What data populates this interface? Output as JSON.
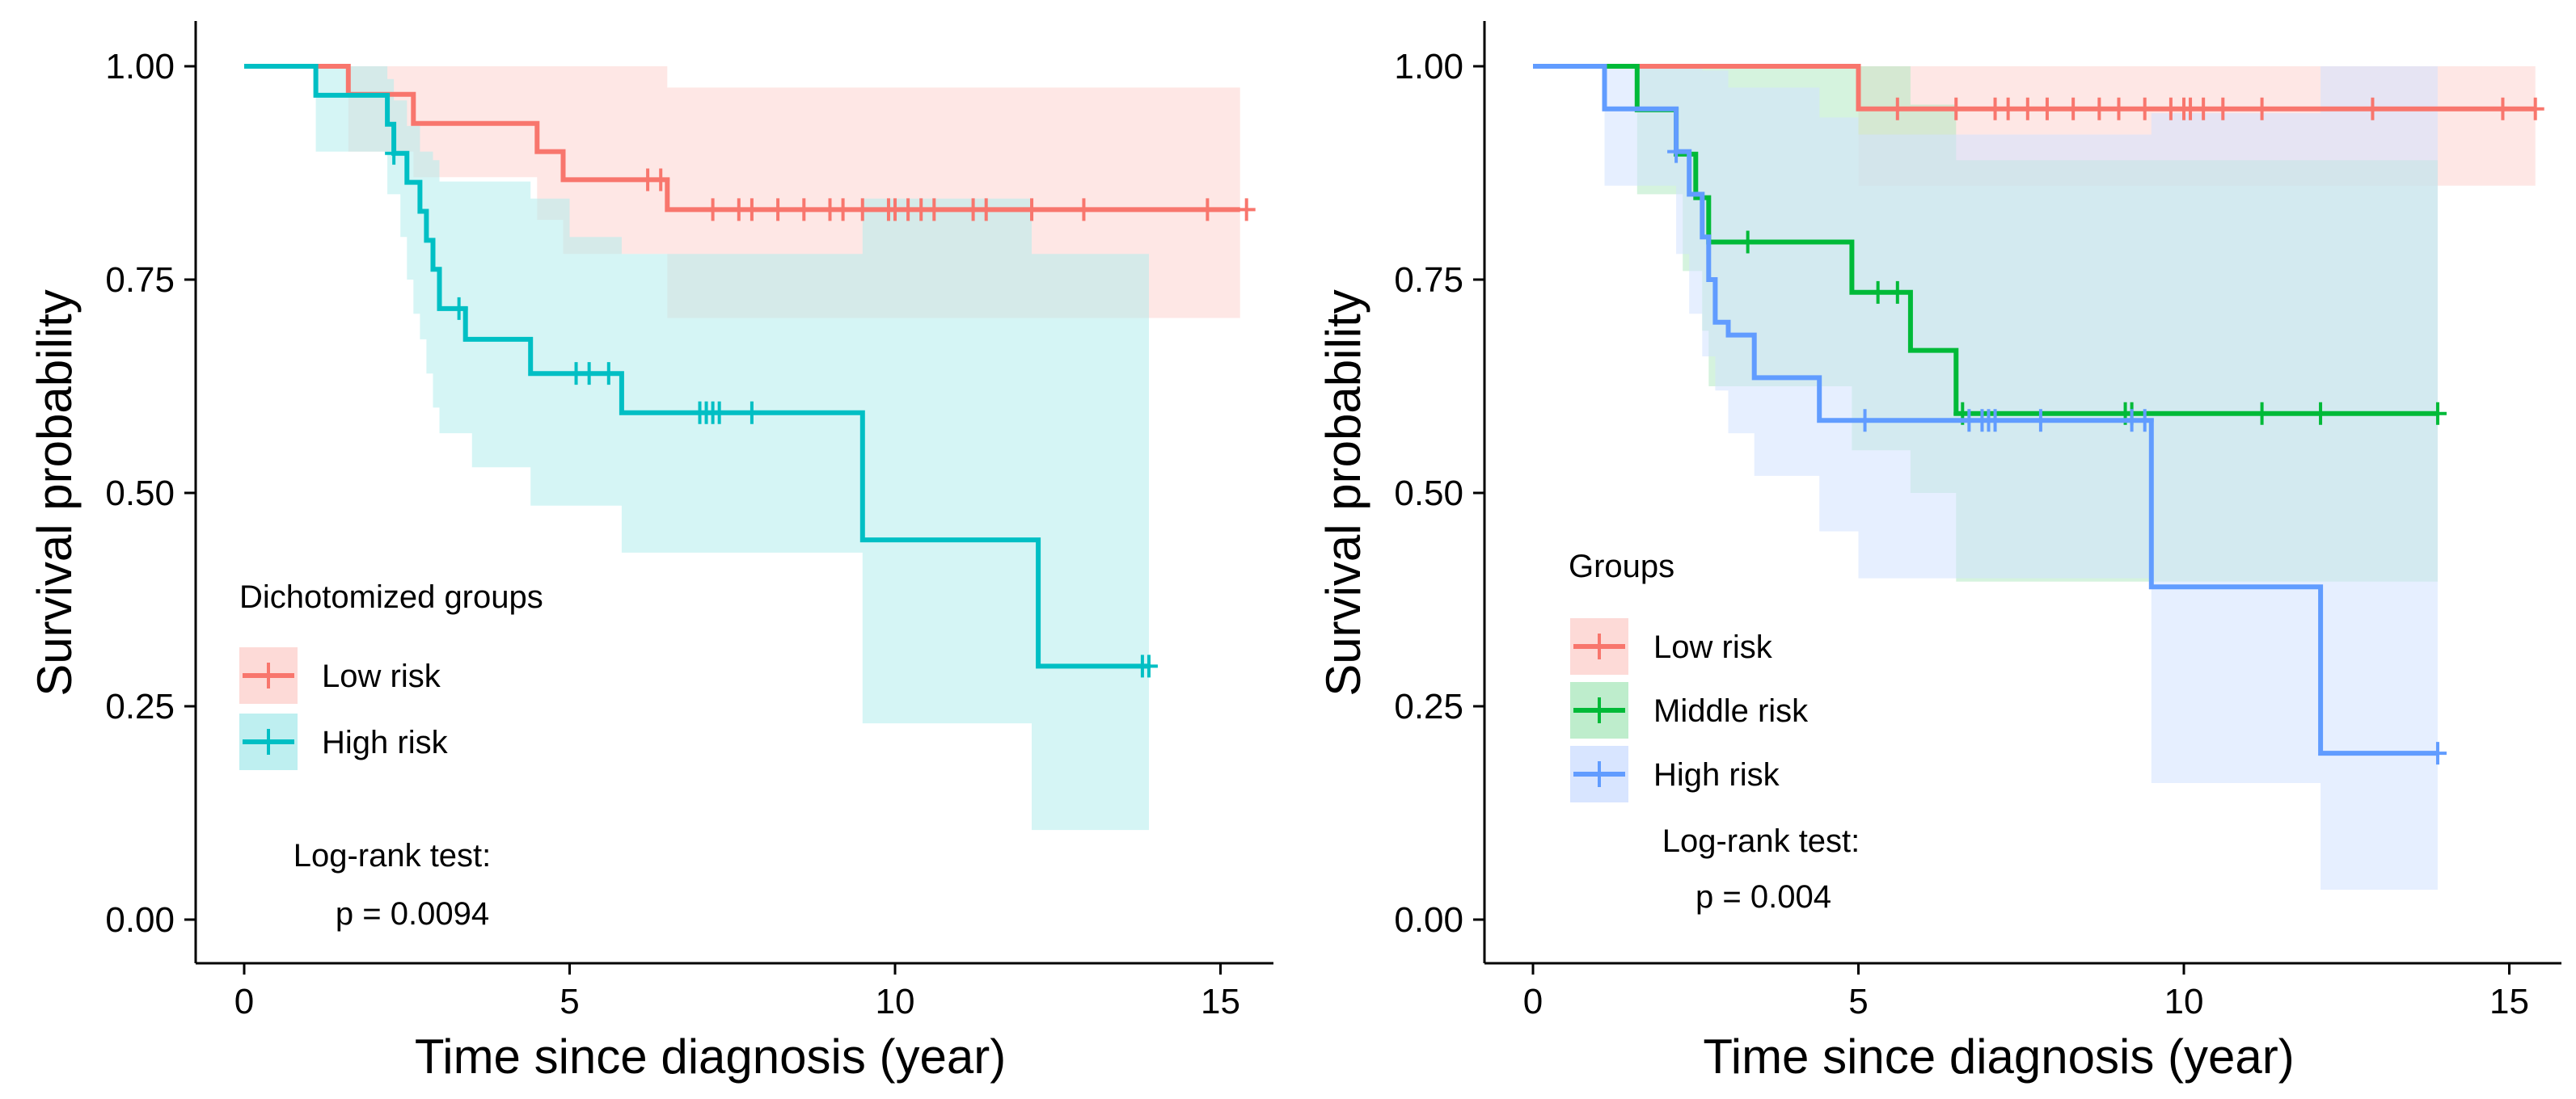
{
  "chart_data": [
    {
      "type": "line",
      "subtype": "kaplan-meier",
      "title": "",
      "xlabel": "Time since diagnosis (year)",
      "ylabel": "Survival probability",
      "xlim": [
        -0.75,
        15.75
      ],
      "ylim": [
        -0.05,
        1.05
      ],
      "xticks": [
        0,
        5,
        10,
        15
      ],
      "yticks": [
        0.0,
        0.25,
        0.5,
        0.75,
        1.0
      ],
      "xtick_labels": [
        "0",
        "5",
        "10",
        "15"
      ],
      "ytick_labels": [
        "0.00",
        "0.25",
        "0.50",
        "0.75",
        "1.00"
      ],
      "grid": false,
      "legend": {
        "title": "Dichotomized groups",
        "position": "left-middle"
      },
      "annotation": {
        "title": "Log-rank test:",
        "value": "p = 0.0094"
      },
      "series": [
        {
          "name": "Low risk",
          "color": "#F8766D",
          "band_color": "#FDD3D0",
          "steps": [
            [
              0,
              1.0
            ],
            [
              1.6,
              0.967
            ],
            [
              2.6,
              0.933
            ],
            [
              4.5,
              0.9
            ],
            [
              4.9,
              0.867
            ],
            [
              6.5,
              0.832
            ],
            [
              15.3,
              0.832
            ]
          ],
          "ci_lower": [
            [
              0,
              1.0
            ],
            [
              1.6,
              0.9
            ],
            [
              2.6,
              0.87
            ],
            [
              4.5,
              0.82
            ],
            [
              4.9,
              0.78
            ],
            [
              6.5,
              0.705
            ],
            [
              15.3,
              0.705
            ]
          ],
          "ci_upper": [
            [
              0,
              1.0
            ],
            [
              1.6,
              1.0
            ],
            [
              2.6,
              1.0
            ],
            [
              4.5,
              1.0
            ],
            [
              4.9,
              1.0
            ],
            [
              6.5,
              0.975
            ],
            [
              15.3,
              0.975
            ]
          ],
          "ci_end": 15.3,
          "censor_times": [
            6.2,
            6.4,
            7.2,
            7.6,
            7.8,
            8.2,
            8.6,
            9.0,
            9.2,
            9.5,
            9.9,
            10.0,
            10.2,
            10.4,
            10.6,
            11.2,
            11.4,
            12.1,
            12.9,
            14.8,
            15.4
          ]
        },
        {
          "name": "High risk",
          "color": "#00BFC4",
          "band_color": "#B3ECED",
          "steps": [
            [
              0,
              1.0
            ],
            [
              1.1,
              0.966
            ],
            [
              2.2,
              0.932
            ],
            [
              2.3,
              0.898
            ],
            [
              2.5,
              0.864
            ],
            [
              2.7,
              0.83
            ],
            [
              2.8,
              0.796
            ],
            [
              2.9,
              0.762
            ],
            [
              3.0,
              0.728
            ],
            [
              3.0,
              0.716
            ],
            [
              3.4,
              0.68
            ],
            [
              4.4,
              0.64
            ],
            [
              5.8,
              0.594
            ],
            [
              9.5,
              0.594
            ],
            [
              9.5,
              0.445
            ],
            [
              12.2,
              0.297
            ],
            [
              13.9,
              0.297
            ]
          ],
          "ci_lower": [
            [
              0,
              1.0
            ],
            [
              1.1,
              0.9
            ],
            [
              2.2,
              0.85
            ],
            [
              2.4,
              0.8
            ],
            [
              2.5,
              0.75
            ],
            [
              2.6,
              0.71
            ],
            [
              2.7,
              0.68
            ],
            [
              2.8,
              0.64
            ],
            [
              2.9,
              0.6
            ],
            [
              3.0,
              0.57
            ],
            [
              3.5,
              0.53
            ],
            [
              4.4,
              0.485
            ],
            [
              5.8,
              0.43
            ],
            [
              9.5,
              0.23
            ],
            [
              12.1,
              0.105
            ],
            [
              13.9,
              0.105
            ]
          ],
          "ci_upper": [
            [
              0,
              1.0
            ],
            [
              1.1,
              1.0
            ],
            [
              2.2,
              0.985
            ],
            [
              2.3,
              0.96
            ],
            [
              2.5,
              0.93
            ],
            [
              2.7,
              0.9
            ],
            [
              2.9,
              0.89
            ],
            [
              3.0,
              0.865
            ],
            [
              4.4,
              0.845
            ],
            [
              5.0,
              0.8
            ],
            [
              5.8,
              0.78
            ],
            [
              9.5,
              0.845
            ],
            [
              12.1,
              0.78
            ],
            [
              13.9,
              0.78
            ]
          ],
          "ci_end": 13.9,
          "censor_times": [
            2.3,
            3.3,
            5.1,
            5.3,
            5.6,
            7.0,
            7.1,
            7.2,
            7.3,
            7.8,
            13.8,
            13.9
          ]
        }
      ]
    },
    {
      "type": "line",
      "subtype": "kaplan-meier",
      "title": "",
      "xlabel": "Time since diagnosis (year)",
      "ylabel": "Survival probability",
      "xlim": [
        -0.75,
        15.75
      ],
      "ylim": [
        -0.05,
        1.05
      ],
      "xticks": [
        0,
        5,
        10,
        15
      ],
      "yticks": [
        0.0,
        0.25,
        0.5,
        0.75,
        1.0
      ],
      "xtick_labels": [
        "0",
        "5",
        "10",
        "15"
      ],
      "ytick_labels": [
        "0.00",
        "0.25",
        "0.50",
        "0.75",
        "1.00"
      ],
      "grid": false,
      "legend": {
        "title": "Groups",
        "position": "left-middle"
      },
      "annotation": {
        "title": "Log-rank test:",
        "value": "p = 0.004"
      },
      "series": [
        {
          "name": "Low risk",
          "color": "#F8766D",
          "band_color": "#FDD3D0",
          "steps": [
            [
              0,
              1.0
            ],
            [
              5.0,
              0.95
            ],
            [
              15.4,
              0.95
            ]
          ],
          "ci_lower": [
            [
              0,
              1.0
            ],
            [
              5.0,
              0.86
            ],
            [
              15.4,
              0.86
            ]
          ],
          "ci_upper": [
            [
              0,
              1.0
            ],
            [
              15.4,
              1.0
            ]
          ],
          "ci_end": 15.4,
          "censor_times": [
            5.6,
            6.5,
            7.1,
            7.3,
            7.6,
            7.9,
            8.3,
            8.7,
            9.0,
            9.4,
            9.8,
            10.0,
            10.1,
            10.3,
            10.6,
            11.2,
            12.9,
            14.9,
            15.4
          ]
        },
        {
          "name": "Middle risk",
          "color": "#00BA38",
          "band_color": "#B3EAC3",
          "steps": [
            [
              0,
              1.0
            ],
            [
              1.6,
              0.949
            ],
            [
              2.2,
              0.897
            ],
            [
              2.5,
              0.846
            ],
            [
              2.7,
              0.794
            ],
            [
              4.9,
              0.735
            ],
            [
              5.8,
              0.667
            ],
            [
              6.5,
              0.593
            ],
            [
              13.9,
              0.593
            ]
          ],
          "ci_lower": [
            [
              0,
              1.0
            ],
            [
              1.6,
              0.85
            ],
            [
              2.3,
              0.76
            ],
            [
              2.6,
              0.69
            ],
            [
              2.7,
              0.625
            ],
            [
              4.9,
              0.55
            ],
            [
              5.8,
              0.5
            ],
            [
              6.5,
              0.396
            ],
            [
              13.9,
              0.396
            ]
          ],
          "ci_upper": [
            [
              0,
              1.0
            ],
            [
              4.9,
              1.0
            ],
            [
              5.8,
              0.955
            ],
            [
              6.5,
              0.89
            ],
            [
              13.9,
              0.89
            ]
          ],
          "ci_end": 13.9,
          "censor_times": [
            3.3,
            5.3,
            5.6,
            6.6,
            9.1,
            9.2,
            11.2,
            12.1,
            13.9
          ]
        },
        {
          "name": "High risk",
          "color": "#619CFF",
          "band_color": "#D1E1FF",
          "steps": [
            [
              0,
              1.0
            ],
            [
              1.1,
              0.95
            ],
            [
              2.2,
              0.9
            ],
            [
              2.4,
              0.85
            ],
            [
              2.6,
              0.8
            ],
            [
              2.7,
              0.75
            ],
            [
              2.8,
              0.7
            ],
            [
              3.0,
              0.685
            ],
            [
              3.4,
              0.635
            ],
            [
              4.4,
              0.585
            ],
            [
              9.5,
              0.585
            ],
            [
              9.5,
              0.39
            ],
            [
              12.1,
              0.195
            ],
            [
              13.9,
              0.195
            ]
          ],
          "ci_lower": [
            [
              0,
              1.0
            ],
            [
              1.1,
              0.86
            ],
            [
              2.2,
              0.78
            ],
            [
              2.4,
              0.71
            ],
            [
              2.6,
              0.66
            ],
            [
              2.8,
              0.62
            ],
            [
              3.0,
              0.57
            ],
            [
              3.4,
              0.52
            ],
            [
              4.4,
              0.455
            ],
            [
              5.0,
              0.4
            ],
            [
              9.5,
              0.16
            ],
            [
              12.1,
              0.035
            ],
            [
              13.9,
              0.035
            ]
          ],
          "ci_upper": [
            [
              0,
              1.0
            ],
            [
              2.2,
              1.0
            ],
            [
              2.6,
              0.995
            ],
            [
              3.0,
              0.975
            ],
            [
              4.4,
              0.94
            ],
            [
              5.0,
              0.92
            ],
            [
              9.5,
              0.945
            ],
            [
              12.1,
              1.0
            ],
            [
              13.9,
              1.0
            ]
          ],
          "ci_end": 13.9,
          "censor_times": [
            2.2,
            5.1,
            6.7,
            6.9,
            7.0,
            7.1,
            7.8,
            9.2,
            9.4,
            13.9
          ]
        }
      ]
    }
  ]
}
